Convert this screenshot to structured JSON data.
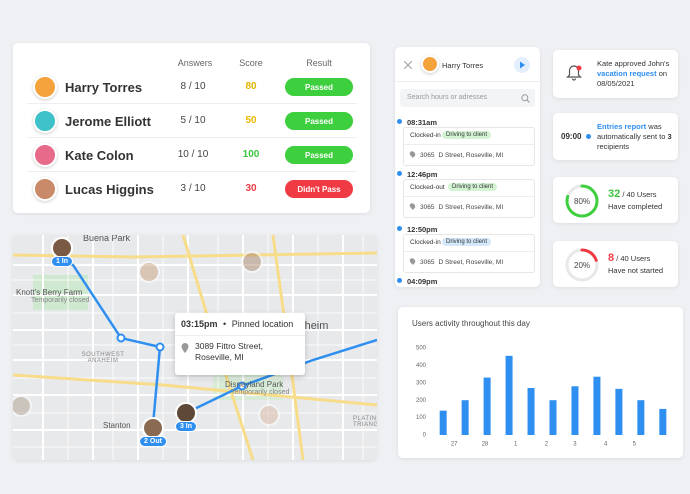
{
  "results_table": {
    "headers": [
      "Answers",
      "Score",
      "Result"
    ],
    "rows": [
      {
        "name": "Harry Torres",
        "answers": "8 / 10",
        "score": "80",
        "score_color": "#e0b400",
        "result": "Passed",
        "result_color": "#3ecf3e",
        "avatar_color": "#f4a23c"
      },
      {
        "name": "Jerome Elliott",
        "answers": "5 / 10",
        "score": "50",
        "score_color": "#f0b800",
        "result": "Passed",
        "result_color": "#3ecf3e",
        "avatar_color": "#3fc1c9"
      },
      {
        "name": "Kate Colon",
        "answers": "10 / 10",
        "score": "100",
        "score_color": "#3ec43e",
        "result": "Passed",
        "result_color": "#3ecf3e",
        "avatar_color": "#e86a8a"
      },
      {
        "name": "Lucas Higgins",
        "answers": "3 / 10",
        "score": "30",
        "score_color": "#f03b45",
        "result": "Didn't Pass",
        "result_color": "#f03b45",
        "avatar_color": "#c98a6a"
      }
    ]
  },
  "map": {
    "places": [
      "Buena Park",
      "Knott's Berry Farm",
      "Temporarily closed",
      "SOUTHWEST ANAHEIM",
      "Anaheim",
      "Disneyland Park",
      "Temporarily closed",
      "Stanton",
      "PLATINUM TRIANGLE"
    ],
    "markers": [
      "1 In",
      "2 Out",
      "3 In"
    ],
    "popup": {
      "time": "03:15pm",
      "separator": "•",
      "label": "Pinned location",
      "address": "3089 Fittro Street, Roseville, MI"
    }
  },
  "timeline": {
    "user": "Harry Torres",
    "search_placeholder": "Search hours or adresses",
    "entries": [
      {
        "time": "08:31am",
        "status": "Clocked-in",
        "tag": "Driving to client",
        "tag_color": "#d3f3d3",
        "address_number": "3065",
        "address": "D Street, Roseville, MI"
      },
      {
        "time": "12:46pm",
        "status": "Clocked-out",
        "tag": "Driving to client",
        "tag_color": "#d3f3d3",
        "address_number": "3065",
        "address": "D Street, Roseville, MI"
      },
      {
        "time": "12:50pm",
        "status": "Clocked-in",
        "tag": "Driving to client",
        "tag_color": "#d3e8fb",
        "address_number": "3065",
        "address": "D Street, Roseville, MI"
      },
      {
        "time": "04:09pm"
      }
    ]
  },
  "notifications": {
    "approval": {
      "text_before": "Kate approved John's",
      "link": "vacation request",
      "text_after": "on 08/05/2021"
    },
    "report": {
      "time": "09:00",
      "link": "Entries report",
      "text_after": "was automatically sent to",
      "count": "3",
      "text_end": "recipients"
    },
    "completed": {
      "donut": {
        "value": 80,
        "label": "80%"
      },
      "color": "#3ecf3e",
      "count": "32",
      "total": "/ 40 Users",
      "caption": "Have completed"
    },
    "not_started": {
      "donut": {
        "value": 20,
        "label": "20%"
      },
      "color": "#f03b45",
      "count": "8",
      "total": "/ 40 Users",
      "caption": "Have not started"
    }
  },
  "chart_data": {
    "type": "bar",
    "title": "Users activity throughout this day",
    "x": [
      0,
      1,
      2,
      3,
      4,
      5,
      6,
      7,
      8,
      9,
      10
    ],
    "values": [
      140,
      200,
      330,
      455,
      270,
      200,
      280,
      335,
      265,
      200,
      150
    ],
    "color": "#2f8ff0",
    "xlim": [
      -0.6,
      10.6
    ],
    "xticks": [
      {
        "value": 0.5,
        "label": "27"
      },
      {
        "value": 1.9,
        "label": "28"
      },
      {
        "value": 3.3,
        "label": "1"
      },
      {
        "value": 4.7,
        "label": "2"
      },
      {
        "value": 6,
        "label": "3"
      },
      {
        "value": 7.4,
        "label": "4"
      },
      {
        "value": 8.7,
        "label": "5"
      }
    ],
    "ylim": [
      0,
      500
    ],
    "yticks": [
      0,
      100,
      200,
      300,
      400,
      500
    ],
    "grid": false
  }
}
